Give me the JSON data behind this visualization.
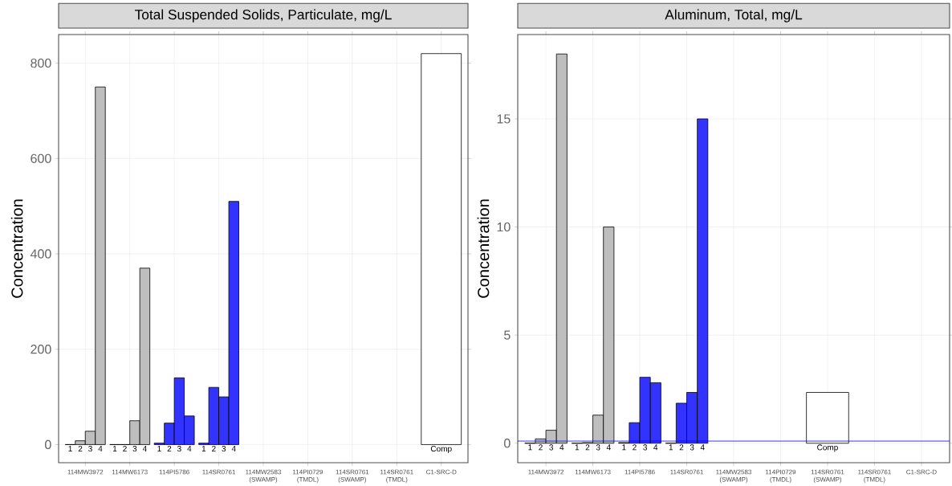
{
  "chart_data": [
    {
      "type": "bar",
      "title": "Total Suspended Solids, Particulate, mg/L",
      "ylabel": "Concentration",
      "categories": [
        "114MW3972",
        "114MW6173",
        "114PI5786",
        "114SR0761",
        "114MW2583 (SWAMP)",
        "114PI0729 (TMDL)",
        "114SR0761 (SWAMP)",
        "114SR0761 (TMDL)",
        "C1-SRC-D"
      ],
      "series": [
        {
          "name": "1",
          "values": [
            0,
            0,
            3,
            3,
            null,
            null,
            null,
            null,
            null
          ],
          "colors": [
            "#bebebe",
            "#bebebe",
            "#3333ff",
            "#3333ff",
            null,
            null,
            null,
            null,
            null
          ]
        },
        {
          "name": "2",
          "values": [
            8,
            0,
            45,
            120,
            null,
            null,
            null,
            null,
            null
          ],
          "colors": [
            "#bebebe",
            "#bebebe",
            "#3333ff",
            "#3333ff",
            null,
            null,
            null,
            null,
            null
          ]
        },
        {
          "name": "3",
          "values": [
            28,
            50,
            140,
            100,
            null,
            null,
            null,
            null,
            null
          ],
          "colors": [
            "#bebebe",
            "#bebebe",
            "#3333ff",
            "#3333ff",
            null,
            null,
            null,
            null,
            null
          ]
        },
        {
          "name": "4",
          "values": [
            750,
            370,
            60,
            510,
            null,
            null,
            null,
            null,
            null
          ],
          "colors": [
            "#bebebe",
            "#bebebe",
            "#3333ff",
            "#3333ff",
            null,
            null,
            null,
            null,
            null
          ]
        },
        {
          "name": "Comp",
          "values": [
            null,
            null,
            null,
            null,
            null,
            null,
            null,
            null,
            820
          ],
          "color": "#ffffff"
        }
      ],
      "ylim": [
        -38,
        860
      ],
      "yticks": [
        0,
        200,
        400,
        600,
        800
      ],
      "grid": true,
      "legend": "bottom"
    },
    {
      "type": "bar",
      "title": "Aluminum, Total, mg/L",
      "ylabel": "Concentration",
      "categories": [
        "114MW3972",
        "114MW6173",
        "114PI5786",
        "114SR0761",
        "114MW2583 (SWAMP)",
        "114PI0729 (TMDL)",
        "114SR0761 (SWAMP)",
        "114SR0761 (TMDL)",
        "C1-SRC-D"
      ],
      "series": [
        {
          "name": "1",
          "values": [
            0,
            0,
            0.03,
            0,
            null,
            null,
            null,
            null,
            null
          ],
          "colors": [
            "#bebebe",
            "#bebebe",
            "#3333ff",
            "#3333ff",
            null,
            null,
            null,
            null,
            null
          ]
        },
        {
          "name": "2",
          "values": [
            0.2,
            0.03,
            0.95,
            1.85,
            null,
            null,
            null,
            null,
            null
          ],
          "colors": [
            "#bebebe",
            "#bebebe",
            "#3333ff",
            "#3333ff",
            null,
            null,
            null,
            null,
            null
          ]
        },
        {
          "name": "3",
          "values": [
            0.6,
            1.3,
            3.05,
            2.35,
            null,
            null,
            null,
            null,
            null
          ],
          "colors": [
            "#bebebe",
            "#bebebe",
            "#3333ff",
            "#3333ff",
            null,
            null,
            null,
            null,
            null
          ]
        },
        {
          "name": "4",
          "values": [
            18,
            10,
            2.8,
            15,
            null,
            null,
            null,
            null,
            null
          ],
          "colors": [
            "#bebebe",
            "#bebebe",
            "#3333ff",
            "#3333ff",
            null,
            null,
            null,
            null,
            null
          ]
        },
        {
          "name": "Comp",
          "values": [
            null,
            null,
            null,
            null,
            null,
            null,
            2.35,
            null,
            null
          ],
          "color": "#ffffff"
        }
      ],
      "ref_lines": [
        {
          "axis": "y",
          "value": 0.1,
          "color": "#0000ff"
        }
      ],
      "ylim": [
        -0.9,
        18.9
      ],
      "yticks": [
        0,
        5,
        10,
        15
      ],
      "grid": true,
      "legend": "bottom"
    }
  ]
}
